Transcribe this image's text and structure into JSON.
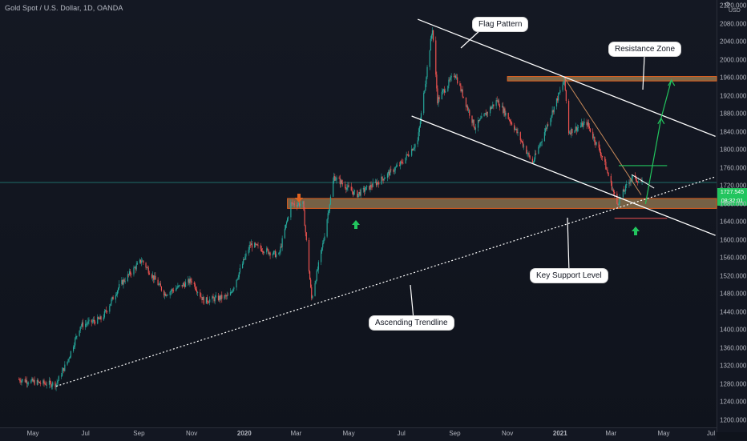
{
  "symbol_title": "Gold Spot / U.S. Dollar, 1D, OANDA",
  "currency": "USD",
  "last_price": "1727.545",
  "countdown": "08:32:01",
  "annotations": {
    "flag_pattern": "Flag Pattern",
    "resistance_zone": "Resistance Zone",
    "key_support_level": "Key Support Level",
    "ascending_trendline": "Ascending Trendline"
  },
  "colors": {
    "up_candle": "#26a69a",
    "down_candle": "#ef5350",
    "zone_fill": "#c8a064",
    "zone_border": "#e06020",
    "lines": "#ffffff",
    "support_arrow": "#22c55e",
    "top_arrow": "#e0621f",
    "projection": "#22c55e",
    "price_line": "#26a69a"
  },
  "chart_data": {
    "type": "candlestick",
    "title": "Gold Spot / U.S. Dollar, 1D, OANDA",
    "y_axis": {
      "unit": "USD",
      "ticks": [
        2120,
        2080,
        2040,
        2000,
        1960,
        1920,
        1880,
        1840,
        1800,
        1760,
        1720,
        1680,
        1640,
        1600,
        1560,
        1520,
        1480,
        1440,
        1400,
        1360,
        1320,
        1280,
        1240,
        1200
      ],
      "range": [
        1200,
        2130
      ]
    },
    "x_axis": {
      "ticks": [
        "May",
        "Jul",
        "Sep",
        "Nov",
        "2020",
        "Mar",
        "May",
        "Jul",
        "Sep",
        "Nov",
        "2021",
        "Mar",
        "May",
        "Jul"
      ]
    },
    "price_path": [
      {
        "date": "2019-04-15",
        "close": 1290
      },
      {
        "date": "2019-05-10",
        "close": 1282
      },
      {
        "date": "2019-05-28",
        "close": 1280
      },
      {
        "date": "2019-06-10",
        "close": 1330
      },
      {
        "date": "2019-06-25",
        "close": 1410
      },
      {
        "date": "2019-07-20",
        "close": 1425
      },
      {
        "date": "2019-08-10",
        "close": 1500
      },
      {
        "date": "2019-09-04",
        "close": 1555
      },
      {
        "date": "2019-10-01",
        "close": 1480
      },
      {
        "date": "2019-11-01",
        "close": 1510
      },
      {
        "date": "2019-11-15",
        "close": 1465
      },
      {
        "date": "2019-12-15",
        "close": 1475
      },
      {
        "date": "2020-01-08",
        "close": 1590
      },
      {
        "date": "2020-02-10",
        "close": 1565
      },
      {
        "date": "2020-02-24",
        "close": 1680
      },
      {
        "date": "2020-03-09",
        "close": 1680
      },
      {
        "date": "2020-03-19",
        "close": 1470
      },
      {
        "date": "2020-04-01",
        "close": 1590
      },
      {
        "date": "2020-04-14",
        "close": 1740
      },
      {
        "date": "2020-05-10",
        "close": 1700
      },
      {
        "date": "2020-06-05",
        "close": 1730
      },
      {
        "date": "2020-07-01",
        "close": 1770
      },
      {
        "date": "2020-07-20",
        "close": 1820
      },
      {
        "date": "2020-08-06",
        "close": 2070
      },
      {
        "date": "2020-08-12",
        "close": 1910
      },
      {
        "date": "2020-09-01",
        "close": 1970
      },
      {
        "date": "2020-09-24",
        "close": 1850
      },
      {
        "date": "2020-10-20",
        "close": 1910
      },
      {
        "date": "2020-11-09",
        "close": 1850
      },
      {
        "date": "2020-11-30",
        "close": 1770
      },
      {
        "date": "2021-01-06",
        "close": 1955
      },
      {
        "date": "2021-01-11",
        "close": 1840
      },
      {
        "date": "2021-02-01",
        "close": 1860
      },
      {
        "date": "2021-02-20",
        "close": 1780
      },
      {
        "date": "2021-03-08",
        "close": 1680
      },
      {
        "date": "2021-03-25",
        "close": 1740
      },
      {
        "date": "2021-04-06",
        "close": 1727.545
      }
    ],
    "levels": {
      "resistance_zone": [
        1953,
        1963
      ],
      "key_support_zone": [
        1670,
        1692
      ]
    },
    "trendlines": {
      "flag_upper": [
        {
          "date": "2020-07-20",
          "price": 2090
        },
        {
          "date": "2021-06-30",
          "price": 1830
        }
      ],
      "flag_lower": [
        {
          "date": "2020-07-13",
          "price": 1875
        },
        {
          "date": "2021-06-30",
          "price": 1610
        }
      ],
      "ascending_trendline": [
        {
          "date": "2019-05-28",
          "price": 1275
        },
        {
          "date": "2021-06-30",
          "price": 1740
        }
      ]
    },
    "projection": [
      {
        "date": "2021-04-10",
        "price": 1680
      },
      {
        "date": "2021-04-28",
        "price": 1870
      },
      {
        "date": "2021-05-10",
        "price": 1955
      }
    ]
  }
}
